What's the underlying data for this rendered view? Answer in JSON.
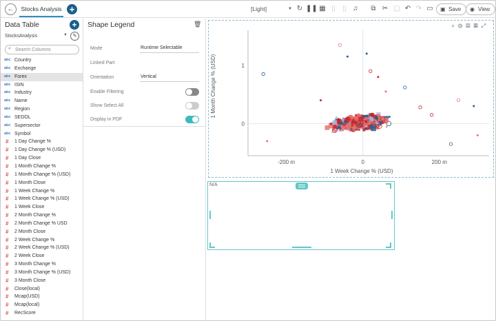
{
  "toolbar": {
    "back_icon": "back-arrow-icon",
    "tab_label": "Stocks Analysis",
    "theme_value": "[Light]",
    "save_label": "Save",
    "view_label": "View"
  },
  "data_table": {
    "title": "Data Table",
    "dataset": "StocksAnalysis",
    "search_placeholder": "Search Columns",
    "columns": [
      {
        "type": "abc",
        "name": "Country"
      },
      {
        "type": "abc",
        "name": "Exchange"
      },
      {
        "type": "abc",
        "name": "Forex",
        "selected": true
      },
      {
        "type": "abc",
        "name": "ISIN"
      },
      {
        "type": "abc",
        "name": "Industry"
      },
      {
        "type": "abc",
        "name": "Name"
      },
      {
        "type": "abc",
        "name": "Region"
      },
      {
        "type": "abc",
        "name": "SEDOL"
      },
      {
        "type": "abc",
        "name": "Supersector"
      },
      {
        "type": "abc",
        "name": "Symbol"
      },
      {
        "type": "#",
        "name": "1 Day Change %"
      },
      {
        "type": "#",
        "name": "1 Day Change % (USD)"
      },
      {
        "type": "#",
        "name": "1 Day Close"
      },
      {
        "type": "#",
        "name": "1 Month Change %"
      },
      {
        "type": "#",
        "name": "1 Month Change % (USD)"
      },
      {
        "type": "#",
        "name": "1 Month Close"
      },
      {
        "type": "#",
        "name": "1 Week Change %"
      },
      {
        "type": "#",
        "name": "1 Week Change % (USD)"
      },
      {
        "type": "#",
        "name": "1 Week Close"
      },
      {
        "type": "#",
        "name": "2 Month Change %"
      },
      {
        "type": "#",
        "name": "2 Month Change % USD"
      },
      {
        "type": "#",
        "name": "2 Month Close"
      },
      {
        "type": "#",
        "name": "2 Week Change %"
      },
      {
        "type": "#",
        "name": "2 Week Change % (USD)"
      },
      {
        "type": "#",
        "name": "2 Week Close"
      },
      {
        "type": "#",
        "name": "3 Month Change %"
      },
      {
        "type": "#",
        "name": "3 Month Change % (USD)"
      },
      {
        "type": "#",
        "name": "3 Month Close"
      },
      {
        "type": "#",
        "name": "Close(local)"
      },
      {
        "type": "#",
        "name": "Mcap(USD)"
      },
      {
        "type": "#",
        "name": "Mcap(local)"
      },
      {
        "type": "#",
        "name": "RecScore"
      }
    ]
  },
  "shape_legend": {
    "title": "Shape Legend",
    "mode_label": "Mode",
    "mode_value": "Runtime Selectable",
    "linked_part_label": "Linked Part",
    "linked_part_value": "",
    "orientation_label": "Orientation",
    "orientation_value": "Vertical",
    "enable_filtering_label": "Enable Filtering",
    "enable_filtering": false,
    "show_select_all_label": "Show Select All",
    "show_select_all": false,
    "display_in_pdf_label": "Display in PDF",
    "display_in_pdf": true
  },
  "chart_data": {
    "type": "scatter",
    "xlabel": "1 Week Change % (USD)",
    "ylabel": "1 Month Change % (USD)",
    "x_ticks": [
      "-200 m",
      "0",
      "200 m"
    ],
    "y_ticks": [
      "1",
      "0"
    ],
    "xlim": [
      -300,
      330
    ],
    "ylim": [
      -0.55,
      1.6
    ],
    "colors": {
      "primary": "#c62828",
      "secondary": "#e57373",
      "tertiary": "#1e5f99",
      "light": "#9ec3e6"
    }
  },
  "legend_part": {
    "placeholder": "N/A"
  }
}
